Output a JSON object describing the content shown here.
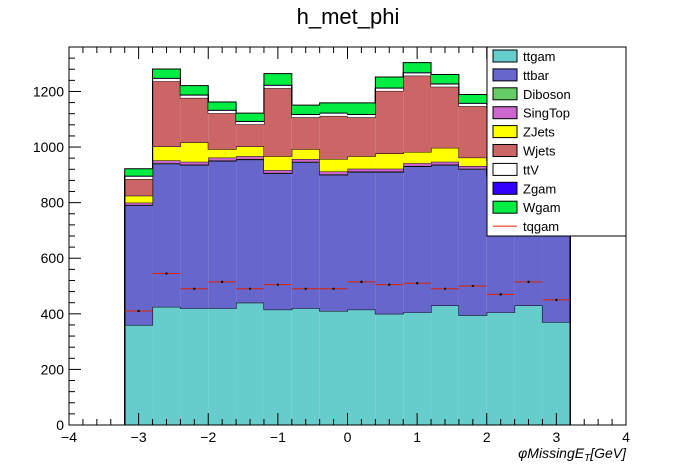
{
  "chart_data": {
    "type": "bar",
    "stacked": true,
    "title": "h_met_phi",
    "xlabel_parts": {
      "phi": "φ",
      "main": "MissingE",
      "sub": "T",
      "unit": "[GeV]"
    },
    "ylabel": "",
    "xlim": [
      -4,
      4
    ],
    "ylim": [
      0,
      1360
    ],
    "xticks": [
      -4,
      -3,
      -2,
      -1,
      0,
      1,
      2,
      3,
      4
    ],
    "yticks": [
      0,
      200,
      400,
      600,
      800,
      1000,
      1200
    ],
    "tick_labels_x": [
      "−4",
      "−3",
      "−2",
      "−1",
      "0",
      "1",
      "2",
      "3",
      "4"
    ],
    "tick_labels_y": [
      "0",
      "200",
      "400",
      "600",
      "800",
      "1000",
      "1200"
    ],
    "bin_edges": [
      -3.2,
      -2.8,
      -2.4,
      -2.0,
      -1.6,
      -1.2,
      -0.8,
      -0.4,
      0.0,
      0.4,
      0.8,
      1.2,
      1.6,
      2.0,
      2.4,
      2.8,
      3.2
    ],
    "grid": false,
    "legend_position": "top-right",
    "series": [
      {
        "name": "ttgam",
        "color": "#66cccc",
        "values": [
          360,
          425,
          420,
          420,
          440,
          415,
          420,
          410,
          415,
          400,
          405,
          430,
          395,
          405,
          430,
          370
        ]
      },
      {
        "name": "ttbar",
        "color": "#6666cc",
        "values": [
          430,
          515,
          515,
          530,
          515,
          490,
          525,
          490,
          495,
          510,
          525,
          505,
          525,
          490,
          510,
          425
        ]
      },
      {
        "name": "Diboson",
        "color": "#66cc66",
        "values": [
          2,
          2,
          2,
          2,
          2,
          2,
          2,
          2,
          2,
          2,
          2,
          2,
          2,
          2,
          2,
          2
        ]
      },
      {
        "name": "SingTop",
        "color": "#cc66cc",
        "values": [
          8,
          10,
          10,
          10,
          10,
          10,
          10,
          10,
          10,
          10,
          10,
          10,
          10,
          10,
          10,
          8
        ]
      },
      {
        "name": "ZJets",
        "color": "#ffff00",
        "values": [
          25,
          50,
          70,
          30,
          35,
          50,
          35,
          45,
          45,
          55,
          40,
          50,
          30,
          45,
          40,
          30
        ]
      },
      {
        "name": "Wjets",
        "color": "#cc6666",
        "values": [
          60,
          235,
          160,
          130,
          80,
          245,
          115,
          155,
          140,
          225,
          275,
          220,
          185,
          190,
          180,
          100
        ]
      },
      {
        "name": "ttV",
        "color": "#ffffff",
        "values": [
          10,
          10,
          10,
          10,
          10,
          10,
          10,
          10,
          10,
          10,
          10,
          10,
          10,
          10,
          10,
          10
        ]
      },
      {
        "name": "Zgam",
        "color": "#3300ff",
        "values": [
          2,
          2,
          2,
          2,
          2,
          2,
          2,
          2,
          2,
          2,
          2,
          2,
          2,
          2,
          2,
          2
        ]
      },
      {
        "name": "Wgam",
        "color": "#00ee44",
        "values": [
          25,
          32,
          32,
          28,
          28,
          40,
          32,
          35,
          40,
          38,
          35,
          32,
          30,
          30,
          28,
          25
        ]
      }
    ],
    "points": {
      "name": "tqgam",
      "color": "#dd2200",
      "values": [
        410,
        545,
        490,
        515,
        490,
        505,
        490,
        490,
        515,
        505,
        510,
        490,
        500,
        470,
        515,
        450
      ]
    }
  }
}
